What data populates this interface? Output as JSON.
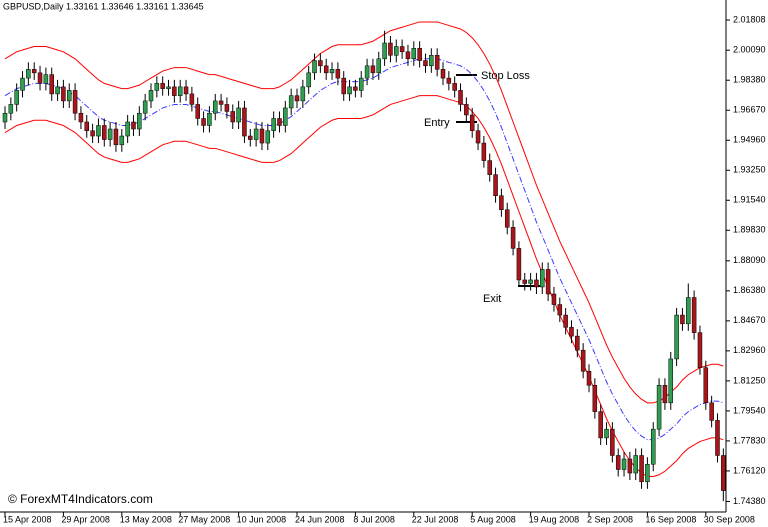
{
  "chart_data": {
    "type": "candlestick",
    "title": "GBPUSD,Daily  1.33161 1.33646 1.33161 1.33645",
    "categories": [
      "15 Apr 2008",
      null,
      null,
      null,
      null,
      null,
      null,
      null,
      null,
      null,
      "29 Apr 2008",
      null,
      null,
      null,
      null,
      null,
      null,
      null,
      null,
      null,
      "13 May 2008",
      null,
      null,
      null,
      null,
      null,
      null,
      null,
      null,
      null,
      "27 May 2008",
      null,
      null,
      null,
      null,
      null,
      null,
      null,
      null,
      null,
      "10 Jun 2008",
      null,
      null,
      null,
      null,
      null,
      null,
      null,
      null,
      null,
      "24 Jun 2008",
      null,
      null,
      null,
      null,
      null,
      null,
      null,
      null,
      null,
      "8 Jul 2008",
      null,
      null,
      null,
      null,
      null,
      null,
      null,
      null,
      null,
      "22 Jul 2008",
      null,
      null,
      null,
      null,
      null,
      null,
      null,
      null,
      null,
      "5 Aug 2008",
      null,
      null,
      null,
      null,
      null,
      null,
      null,
      null,
      null,
      "19 Aug 2008",
      null,
      null,
      null,
      null,
      null,
      null,
      null,
      null,
      null,
      "2 Sep 2008",
      null,
      null,
      null,
      null,
      null,
      null,
      null,
      null,
      null,
      "16 Sep 2008",
      null,
      null,
      null,
      null,
      null,
      null,
      null,
      null,
      null,
      "30 Sep 2008",
      null,
      null,
      null
    ],
    "ohlc": [
      [
        1.96,
        1.969,
        1.956,
        1.965
      ],
      [
        1.965,
        1.974,
        1.961,
        1.97
      ],
      [
        1.97,
        1.982,
        1.966,
        1.978
      ],
      [
        1.978,
        1.989,
        1.974,
        1.985
      ],
      [
        1.985,
        1.994,
        1.981,
        1.99
      ],
      [
        1.99,
        1.994,
        1.984,
        1.988
      ],
      [
        1.988,
        1.992,
        1.978,
        1.982
      ],
      [
        1.982,
        1.991,
        1.978,
        1.987
      ],
      [
        1.987,
        1.991,
        1.972,
        1.976
      ],
      [
        1.976,
        1.984,
        1.972,
        1.98
      ],
      [
        1.98,
        1.984,
        1.968,
        1.972
      ],
      [
        1.972,
        1.982,
        1.968,
        1.978
      ],
      [
        1.978,
        1.982,
        1.961,
        1.965
      ],
      [
        1.965,
        1.969,
        1.956,
        1.96
      ],
      [
        1.96,
        1.964,
        1.951,
        1.955
      ],
      [
        1.955,
        1.959,
        1.948,
        1.952
      ],
      [
        1.952,
        1.962,
        1.948,
        1.958
      ],
      [
        1.958,
        1.962,
        1.946,
        1.95
      ],
      [
        1.95,
        1.96,
        1.946,
        1.956
      ],
      [
        1.956,
        1.96,
        1.943,
        1.947
      ],
      [
        1.947,
        1.956,
        1.943,
        1.952
      ],
      [
        1.952,
        1.964,
        1.948,
        1.96
      ],
      [
        1.96,
        1.964,
        1.952,
        1.956
      ],
      [
        1.956,
        1.969,
        1.952,
        1.965
      ],
      [
        1.965,
        1.976,
        1.961,
        1.972
      ],
      [
        1.972,
        1.982,
        1.968,
        1.978
      ],
      [
        1.978,
        1.986,
        1.974,
        1.982
      ],
      [
        1.982,
        1.986,
        1.975,
        1.979
      ],
      [
        1.979,
        1.984,
        1.975,
        1.98
      ],
      [
        1.98,
        1.984,
        1.971,
        1.975
      ],
      [
        1.975,
        1.984,
        1.971,
        1.98
      ],
      [
        1.98,
        1.984,
        1.972,
        1.976
      ],
      [
        1.976,
        1.98,
        1.966,
        1.97
      ],
      [
        1.97,
        1.974,
        1.958,
        1.962
      ],
      [
        1.962,
        1.966,
        1.954,
        1.958
      ],
      [
        1.958,
        1.969,
        1.954,
        1.965
      ],
      [
        1.965,
        1.976,
        1.961,
        1.972
      ],
      [
        1.972,
        1.976,
        1.966,
        1.97
      ],
      [
        1.97,
        1.974,
        1.962,
        1.966
      ],
      [
        1.966,
        1.97,
        1.956,
        1.96
      ],
      [
        1.96,
        1.972,
        1.956,
        1.968
      ],
      [
        1.968,
        1.972,
        1.948,
        1.952
      ],
      [
        1.952,
        1.956,
        1.946,
        1.95
      ],
      [
        1.95,
        1.96,
        1.946,
        1.956
      ],
      [
        1.956,
        1.96,
        1.944,
        1.948
      ],
      [
        1.948,
        1.959,
        1.944,
        1.955
      ],
      [
        1.955,
        1.966,
        1.951,
        1.962
      ],
      [
        1.962,
        1.966,
        1.954,
        1.958
      ],
      [
        1.958,
        1.972,
        1.954,
        1.968
      ],
      [
        1.968,
        1.979,
        1.964,
        1.975
      ],
      [
        1.975,
        1.979,
        1.968,
        1.972
      ],
      [
        1.972,
        1.984,
        1.968,
        1.98
      ],
      [
        1.98,
        1.992,
        1.976,
        1.988
      ],
      [
        1.988,
        1.999,
        1.984,
        1.995
      ],
      [
        1.995,
        1.999,
        1.988,
        1.992
      ],
      [
        1.992,
        1.996,
        1.984,
        1.988
      ],
      [
        1.988,
        1.994,
        1.984,
        1.99
      ],
      [
        1.99,
        1.994,
        1.981,
        1.985
      ],
      [
        1.985,
        1.989,
        1.972,
        1.976
      ],
      [
        1.976,
        1.984,
        1.972,
        1.98
      ],
      [
        1.98,
        1.984,
        1.974,
        1.978
      ],
      [
        1.978,
        1.989,
        1.974,
        1.985
      ],
      [
        1.985,
        1.996,
        1.981,
        1.992
      ],
      [
        1.992,
        1.996,
        1.984,
        1.988
      ],
      [
        1.988,
        2.0,
        1.984,
        1.996
      ],
      [
        1.996,
        2.012,
        1.992,
        2.005
      ],
      [
        2.005,
        2.009,
        1.994,
        1.998
      ],
      [
        1.998,
        2.007,
        1.994,
        2.003
      ],
      [
        2.003,
        2.007,
        1.996,
        2.0
      ],
      [
        2.0,
        2.004,
        1.992,
        1.996
      ],
      [
        1.996,
        2.006,
        1.992,
        2.002
      ],
      [
        2.002,
        2.006,
        1.991,
        1.995
      ],
      [
        1.995,
        1.999,
        1.988,
        1.992
      ],
      [
        1.992,
        2.002,
        1.988,
        1.998
      ],
      [
        1.998,
        2.002,
        1.986,
        1.99
      ],
      [
        1.99,
        1.994,
        1.981,
        1.985
      ],
      [
        1.985,
        1.989,
        1.978,
        1.982
      ],
      [
        1.982,
        1.986,
        1.974,
        1.978
      ],
      [
        1.978,
        1.982,
        1.966,
        1.97
      ],
      [
        1.97,
        1.974,
        1.96,
        1.964
      ],
      [
        1.964,
        1.968,
        1.951,
        1.955
      ],
      [
        1.955,
        1.959,
        1.944,
        1.948
      ],
      [
        1.948,
        1.952,
        1.934,
        1.938
      ],
      [
        1.938,
        1.942,
        1.926,
        1.93
      ],
      [
        1.93,
        1.934,
        1.914,
        1.918
      ],
      [
        1.918,
        1.922,
        1.906,
        1.91
      ],
      [
        1.91,
        1.914,
        1.896,
        1.9
      ],
      [
        1.9,
        1.904,
        1.884,
        1.888
      ],
      [
        1.888,
        1.892,
        1.866,
        1.87
      ],
      [
        1.87,
        1.874,
        1.864,
        1.868
      ],
      [
        1.868,
        1.874,
        1.864,
        1.87
      ],
      [
        1.87,
        1.874,
        1.862,
        1.866
      ],
      [
        1.866,
        1.88,
        1.862,
        1.876
      ],
      [
        1.876,
        1.88,
        1.858,
        1.862
      ],
      [
        1.862,
        1.866,
        1.852,
        1.856
      ],
      [
        1.856,
        1.86,
        1.846,
        1.85
      ],
      [
        1.85,
        1.854,
        1.839,
        1.843
      ],
      [
        1.843,
        1.847,
        1.834,
        1.838
      ],
      [
        1.838,
        1.842,
        1.826,
        1.83
      ],
      [
        1.83,
        1.834,
        1.814,
        1.818
      ],
      [
        1.818,
        1.822,
        1.806,
        1.81
      ],
      [
        1.81,
        1.814,
        1.791,
        1.795
      ],
      [
        1.795,
        1.799,
        1.776,
        1.78
      ],
      [
        1.78,
        1.789,
        1.776,
        1.785
      ],
      [
        1.785,
        1.789,
        1.766,
        1.77
      ],
      [
        1.77,
        1.774,
        1.758,
        1.762
      ],
      [
        1.762,
        1.772,
        1.758,
        1.768
      ],
      [
        1.768,
        1.772,
        1.756,
        1.76
      ],
      [
        1.76,
        1.774,
        1.756,
        1.77
      ],
      [
        1.77,
        1.774,
        1.751,
        1.755
      ],
      [
        1.755,
        1.769,
        1.751,
        1.765
      ],
      [
        1.765,
        1.789,
        1.761,
        1.785
      ],
      [
        1.785,
        1.814,
        1.781,
        1.81
      ],
      [
        1.81,
        1.814,
        1.796,
        1.8
      ],
      [
        1.8,
        1.829,
        1.796,
        1.825
      ],
      [
        1.825,
        1.854,
        1.821,
        1.85
      ],
      [
        1.85,
        1.854,
        1.841,
        1.845
      ],
      [
        1.845,
        1.868,
        1.841,
        1.86
      ],
      [
        1.86,
        1.864,
        1.836,
        1.84
      ],
      [
        1.84,
        1.844,
        1.816,
        1.82
      ],
      [
        1.82,
        1.824,
        1.796,
        1.8
      ],
      [
        1.8,
        1.804,
        1.786,
        1.79
      ],
      [
        1.79,
        1.794,
        1.766,
        1.77
      ],
      [
        1.77,
        1.774,
        1.744,
        1.75
      ]
    ],
    "up_color": "#2e9e4f",
    "down_color": "#a8161b",
    "wick_color": "#000000",
    "bands": [
      {
        "color": "#ff0000",
        "dash": false,
        "values": [
          1.996,
          1.998,
          2.0,
          2.001,
          2.002,
          2.003,
          2.003,
          2.003,
          2.002,
          2.001,
          2.0,
          1.998,
          1.996,
          1.993,
          1.99,
          1.987,
          1.984,
          1.982,
          1.981,
          1.98,
          1.979,
          1.979,
          1.98,
          1.981,
          1.983,
          1.985,
          1.987,
          1.989,
          1.99,
          1.991,
          1.991,
          1.991,
          1.99,
          1.989,
          1.988,
          1.987,
          1.987,
          1.986,
          1.985,
          1.984,
          1.983,
          1.982,
          1.981,
          1.98,
          1.979,
          1.979,
          1.979,
          1.98,
          1.982,
          1.984,
          1.987,
          1.99,
          1.993,
          1.996,
          1.999,
          2.001,
          2.003,
          2.004,
          2.004,
          2.004,
          2.004,
          2.004,
          2.005,
          2.006,
          2.008,
          2.01,
          2.012,
          2.013,
          2.014,
          2.015,
          2.016,
          2.017,
          2.017,
          2.017,
          2.017,
          2.016,
          2.015,
          2.014,
          2.013,
          2.011,
          2.008,
          2.004,
          1.999,
          1.993,
          1.986,
          1.978,
          1.969,
          1.96,
          1.951,
          1.942,
          1.933,
          1.924,
          1.916,
          1.908,
          1.9,
          1.892,
          1.885,
          1.878,
          1.871,
          1.864,
          1.857,
          1.849,
          1.841,
          1.833,
          1.826,
          1.82,
          1.814,
          1.809,
          1.805,
          1.802,
          1.8,
          1.8,
          1.801,
          1.803,
          1.806,
          1.809,
          1.813,
          1.816,
          1.818,
          1.82,
          1.821,
          1.822,
          1.822,
          1.821
        ]
      },
      {
        "color": "#3a3aff",
        "dash": true,
        "values": [
          1.975,
          1.977,
          1.979,
          1.98,
          1.981,
          1.982,
          1.982,
          1.982,
          1.981,
          1.98,
          1.979,
          1.977,
          1.975,
          1.972,
          1.969,
          1.966,
          1.963,
          1.961,
          1.96,
          1.959,
          1.958,
          1.958,
          1.959,
          1.96,
          1.962,
          1.964,
          1.966,
          1.968,
          1.969,
          1.97,
          1.97,
          1.97,
          1.969,
          1.968,
          1.967,
          1.966,
          1.966,
          1.965,
          1.964,
          1.963,
          1.962,
          1.961,
          1.96,
          1.959,
          1.958,
          1.958,
          1.958,
          1.959,
          1.961,
          1.963,
          1.966,
          1.969,
          1.972,
          1.975,
          1.978,
          1.98,
          1.982,
          1.983,
          1.983,
          1.983,
          1.983,
          1.983,
          1.984,
          1.985,
          1.987,
          1.989,
          1.991,
          1.992,
          1.993,
          1.994,
          1.995,
          1.996,
          1.996,
          1.996,
          1.996,
          1.995,
          1.994,
          1.993,
          1.992,
          1.99,
          1.987,
          1.983,
          1.978,
          1.972,
          1.965,
          1.957,
          1.948,
          1.939,
          1.93,
          1.921,
          1.912,
          1.903,
          1.895,
          1.887,
          1.879,
          1.871,
          1.864,
          1.857,
          1.85,
          1.843,
          1.836,
          1.828,
          1.82,
          1.812,
          1.805,
          1.799,
          1.793,
          1.788,
          1.784,
          1.781,
          1.779,
          1.779,
          1.78,
          1.782,
          1.785,
          1.788,
          1.792,
          1.795,
          1.797,
          1.799,
          1.8,
          1.801,
          1.801,
          1.8
        ]
      },
      {
        "color": "#ff0000",
        "dash": false,
        "values": [
          1.954,
          1.956,
          1.958,
          1.959,
          1.96,
          1.961,
          1.961,
          1.961,
          1.96,
          1.959,
          1.958,
          1.956,
          1.954,
          1.951,
          1.948,
          1.945,
          1.942,
          1.94,
          1.939,
          1.938,
          1.937,
          1.937,
          1.938,
          1.939,
          1.941,
          1.943,
          1.945,
          1.947,
          1.948,
          1.949,
          1.949,
          1.949,
          1.948,
          1.947,
          1.946,
          1.945,
          1.945,
          1.944,
          1.943,
          1.942,
          1.941,
          1.94,
          1.939,
          1.938,
          1.937,
          1.937,
          1.937,
          1.938,
          1.94,
          1.942,
          1.945,
          1.948,
          1.951,
          1.954,
          1.957,
          1.959,
          1.961,
          1.962,
          1.962,
          1.962,
          1.962,
          1.962,
          1.963,
          1.964,
          1.966,
          1.968,
          1.97,
          1.971,
          1.972,
          1.973,
          1.974,
          1.975,
          1.975,
          1.975,
          1.975,
          1.974,
          1.973,
          1.972,
          1.971,
          1.969,
          1.966,
          1.962,
          1.957,
          1.951,
          1.944,
          1.936,
          1.927,
          1.918,
          1.909,
          1.9,
          1.891,
          1.882,
          1.874,
          1.866,
          1.858,
          1.85,
          1.843,
          1.836,
          1.829,
          1.822,
          1.815,
          1.807,
          1.799,
          1.791,
          1.784,
          1.778,
          1.772,
          1.767,
          1.763,
          1.76,
          1.758,
          1.758,
          1.759,
          1.761,
          1.764,
          1.767,
          1.771,
          1.774,
          1.776,
          1.778,
          1.779,
          1.78,
          1.78,
          1.779
        ]
      }
    ],
    "ylim": [
      1.7378,
      2.0295
    ],
    "yticks": [
      2.01808,
      {
        "value": 2.0009,
        "label": "2.00090"
      },
      {
        "value": 1.9838,
        "label": "1.98380"
      },
      {
        "value": 1.9667,
        "label": "1.96670"
      },
      {
        "value": 1.9496,
        "label": "1.94960"
      },
      {
        "value": 1.9325,
        "label": "1.93250"
      },
      {
        "value": 1.9154,
        "label": "1.91540"
      },
      {
        "value": 1.8983,
        "label": "1.89830"
      },
      {
        "value": 1.8809,
        "label": "1.88090"
      },
      {
        "value": 1.8638,
        "label": "1.86380"
      },
      {
        "value": 1.8467,
        "label": "1.84670"
      },
      {
        "value": 1.8296,
        "label": "1.82960"
      },
      {
        "value": 1.8125,
        "label": "1.81250"
      },
      {
        "value": 1.7954,
        "label": "1.79540"
      },
      {
        "value": 1.7783,
        "label": "1.77830"
      },
      {
        "value": 1.7612,
        "label": "1.76120"
      },
      {
        "value": 1.7438,
        "label": "1.74380"
      }
    ],
    "annotations": {
      "stop_loss": "Stop Loss",
      "entry": "Entry",
      "exit": "Exit"
    },
    "watermark": "© ForexMT4Indicators.com"
  }
}
